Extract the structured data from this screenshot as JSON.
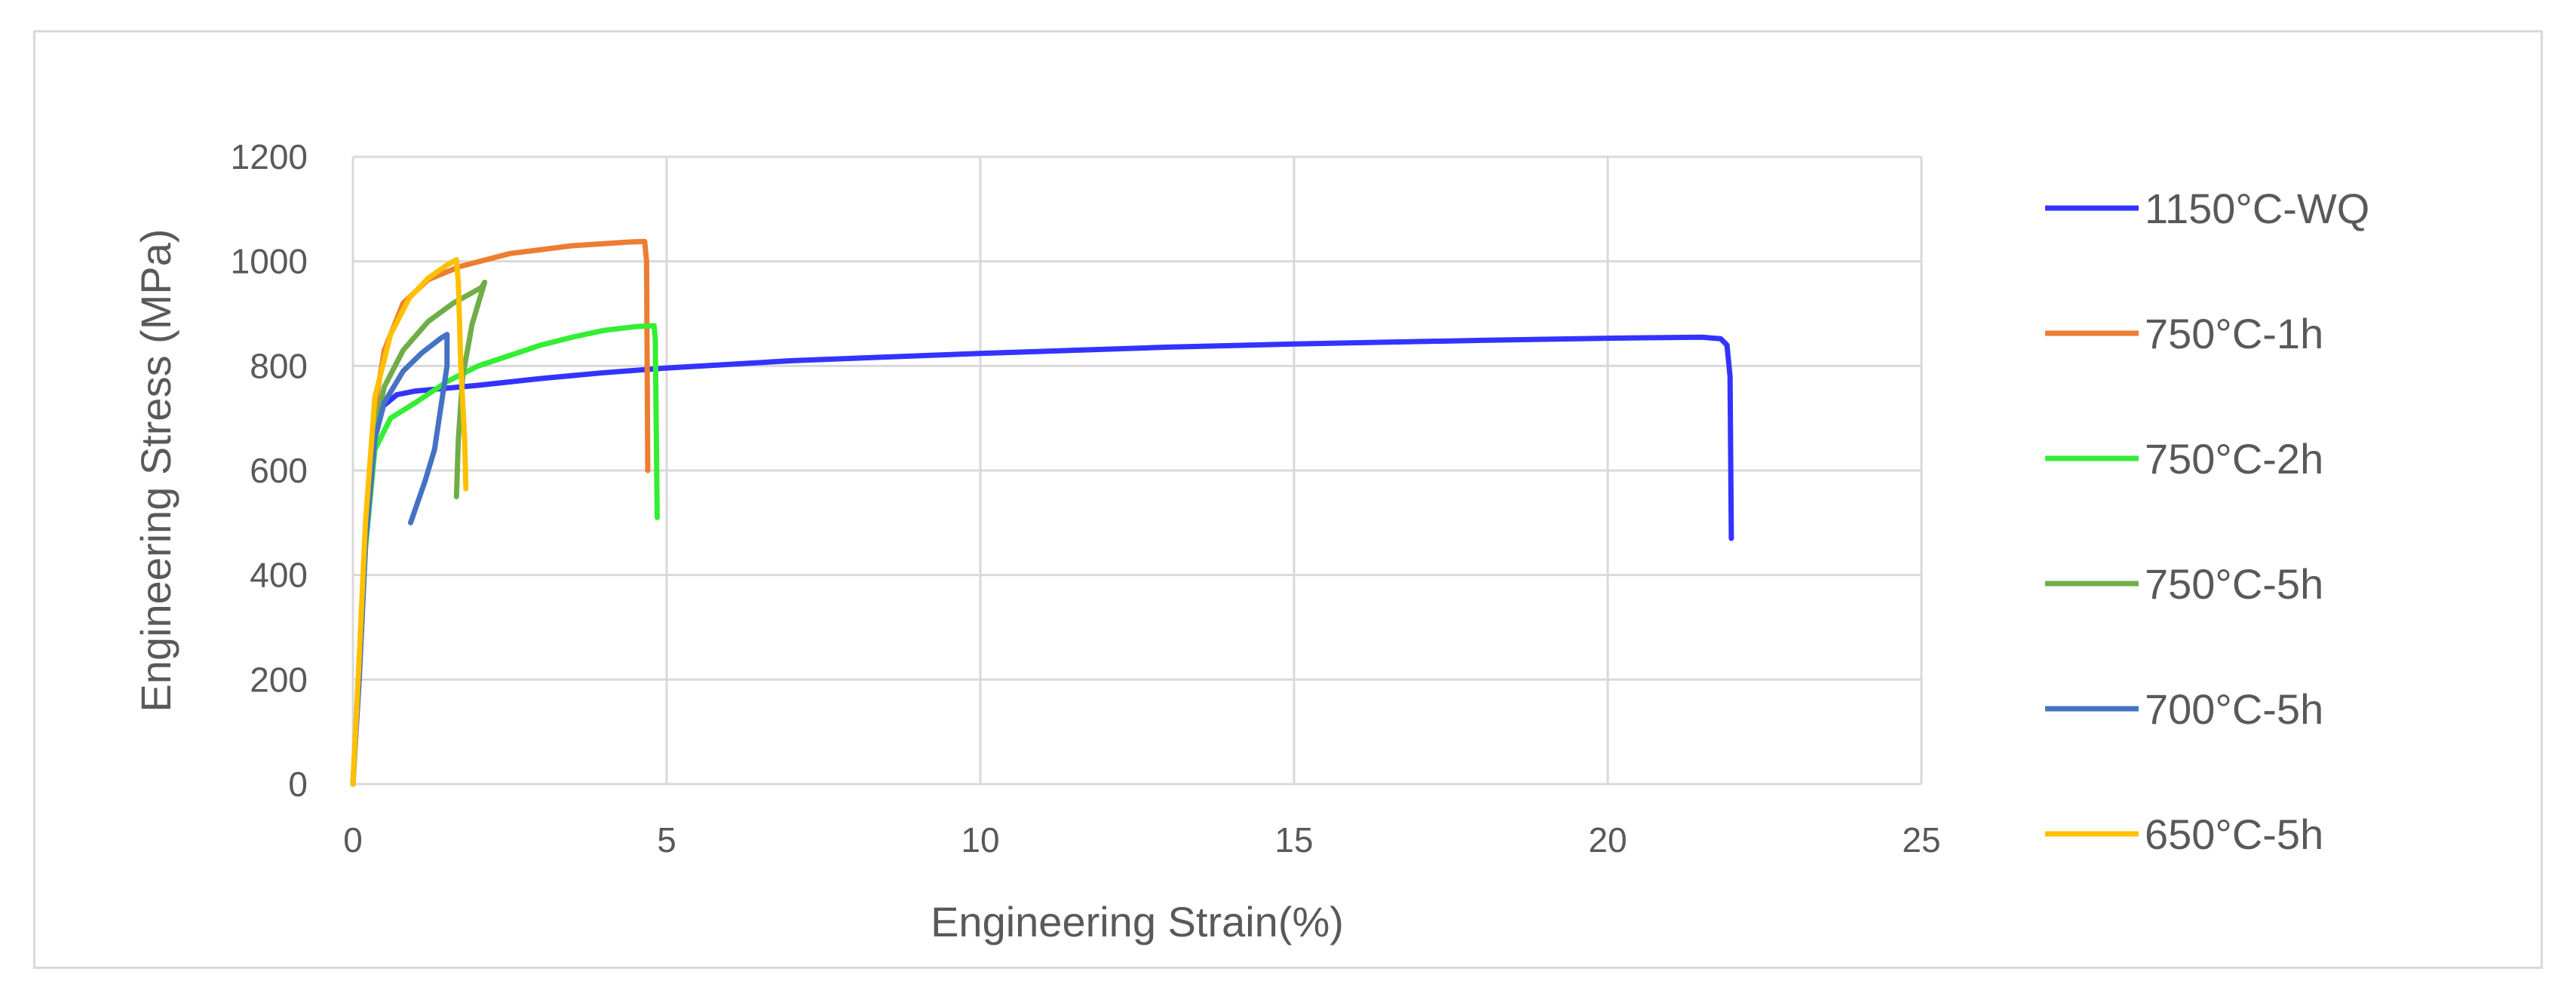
{
  "chart_data": {
    "type": "line",
    "title": "",
    "xlabel": "Engineering Strain(%)",
    "ylabel": "Engineering Stress (MPa)",
    "xlim": [
      0,
      25
    ],
    "ylim": [
      0,
      1200
    ],
    "xticks": [
      0,
      5,
      10,
      15,
      20,
      25
    ],
    "yticks": [
      0,
      200,
      400,
      600,
      800,
      1000,
      1200
    ],
    "grid": true,
    "legend_position": "right",
    "series": [
      {
        "name": "1150°C-WQ",
        "color": "#3333ff",
        "points": [
          [
            0,
            0
          ],
          [
            0.1,
            200
          ],
          [
            0.2,
            450
          ],
          [
            0.3,
            640
          ],
          [
            0.45,
            720
          ],
          [
            0.7,
            745
          ],
          [
            1,
            752
          ],
          [
            2,
            763
          ],
          [
            3,
            776
          ],
          [
            4,
            787
          ],
          [
            5,
            796
          ],
          [
            7,
            810
          ],
          [
            10,
            824
          ],
          [
            13,
            836
          ],
          [
            15,
            842
          ],
          [
            18,
            849
          ],
          [
            20,
            853
          ],
          [
            21.5,
            855
          ],
          [
            21.8,
            852
          ],
          [
            21.9,
            840
          ],
          [
            21.95,
            780
          ],
          [
            21.97,
            470
          ]
        ]
      },
      {
        "name": "750°C-1h",
        "color": "#ed7d31",
        "points": [
          [
            0,
            0
          ],
          [
            0.1,
            230
          ],
          [
            0.2,
            480
          ],
          [
            0.35,
            720
          ],
          [
            0.5,
            830
          ],
          [
            0.8,
            920
          ],
          [
            1.2,
            965
          ],
          [
            1.7,
            990
          ],
          [
            2.5,
            1015
          ],
          [
            3.5,
            1030
          ],
          [
            4.4,
            1037
          ],
          [
            4.65,
            1038
          ],
          [
            4.68,
            1000
          ],
          [
            4.7,
            600
          ]
        ]
      },
      {
        "name": "750°C-2h",
        "color": "#33ee33",
        "points": [
          [
            0,
            0
          ],
          [
            0.1,
            220
          ],
          [
            0.2,
            450
          ],
          [
            0.35,
            640
          ],
          [
            0.6,
            700
          ],
          [
            1,
            730
          ],
          [
            1.5,
            770
          ],
          [
            2,
            800
          ],
          [
            2.5,
            820
          ],
          [
            3,
            840
          ],
          [
            3.5,
            855
          ],
          [
            4,
            868
          ],
          [
            4.5,
            875
          ],
          [
            4.8,
            877
          ],
          [
            4.82,
            850
          ],
          [
            4.85,
            510
          ]
        ]
      },
      {
        "name": "750°C-5h",
        "color": "#70ad47",
        "points": [
          [
            0,
            0
          ],
          [
            0.1,
            220
          ],
          [
            0.2,
            470
          ],
          [
            0.35,
            680
          ],
          [
            0.5,
            760
          ],
          [
            0.8,
            830
          ],
          [
            1.2,
            885
          ],
          [
            1.6,
            920
          ],
          [
            2.05,
            950
          ],
          [
            2.1,
            960
          ],
          [
            1.9,
            880
          ],
          [
            1.75,
            780
          ],
          [
            1.68,
            660
          ],
          [
            1.65,
            550
          ]
        ]
      },
      {
        "name": "700°C-5h",
        "color": "#4472c4",
        "points": [
          [
            0,
            0
          ],
          [
            0.1,
            220
          ],
          [
            0.2,
            460
          ],
          [
            0.35,
            660
          ],
          [
            0.5,
            730
          ],
          [
            0.8,
            790
          ],
          [
            1.1,
            825
          ],
          [
            1.4,
            853
          ],
          [
            1.5,
            860
          ],
          [
            1.5,
            800
          ],
          [
            1.4,
            720
          ],
          [
            1.3,
            640
          ],
          [
            1.15,
            580
          ],
          [
            0.92,
            500
          ]
        ]
      },
      {
        "name": "650°C-5h",
        "color": "#ffc000",
        "points": [
          [
            0,
            0
          ],
          [
            0.1,
            240
          ],
          [
            0.2,
            500
          ],
          [
            0.35,
            740
          ],
          [
            0.6,
            860
          ],
          [
            0.9,
            930
          ],
          [
            1.2,
            968
          ],
          [
            1.5,
            993
          ],
          [
            1.65,
            1003
          ],
          [
            1.68,
            960
          ],
          [
            1.72,
            800
          ],
          [
            1.78,
            660
          ],
          [
            1.8,
            565
          ]
        ]
      }
    ]
  }
}
